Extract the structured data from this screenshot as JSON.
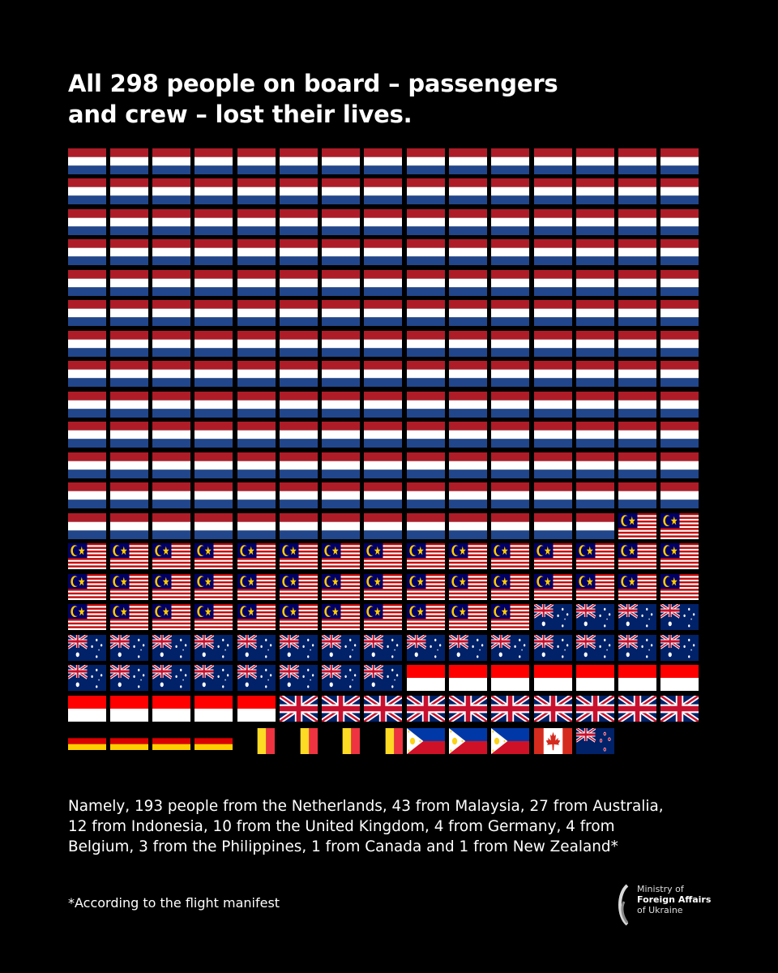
{
  "title": {
    "line1": "All 298 people on board – passengers",
    "line2": "and crew – lost their lives."
  },
  "counts": [
    {
      "country": "Netherlands",
      "flag": "netherlands-flag",
      "count": 193
    },
    {
      "country": "Malaysia",
      "flag": "malaysia-flag",
      "count": 43
    },
    {
      "country": "Australia",
      "flag": "australia-flag",
      "count": 27
    },
    {
      "country": "Indonesia",
      "flag": "indonesia-flag",
      "count": 12
    },
    {
      "country": "United Kingdom",
      "flag": "uk-flag",
      "count": 10
    },
    {
      "country": "Germany",
      "flag": "germany-flag",
      "count": 4
    },
    {
      "country": "Belgium",
      "flag": "belgium-flag",
      "count": 4
    },
    {
      "country": "Philippines",
      "flag": "philippines-flag",
      "count": 3
    },
    {
      "country": "Canada",
      "flag": "canada-flag",
      "count": 1
    },
    {
      "country": "New Zealand",
      "flag": "new-zealand-flag",
      "count": 1
    }
  ],
  "namely": {
    "line1": "Namely, 193 people from the Netherlands, 43 from Malaysia, 27 from Australia,",
    "line2": "12 from Indonesia, 10 from the United Kingdom, 4 from Germany, 4 from",
    "line3": "Belgium, 3 from the Philippines, 1 from Canada and 1 from New Zealand*"
  },
  "footnote": "*According to the flight manifest",
  "logo": {
    "line1": "Ministry of",
    "line2": "Foreign Affairs",
    "line3": "of Ukraine"
  },
  "colors": {
    "background": "#000000",
    "red": "#ae1c28",
    "blue": "#21468b",
    "navy": "#012169"
  }
}
